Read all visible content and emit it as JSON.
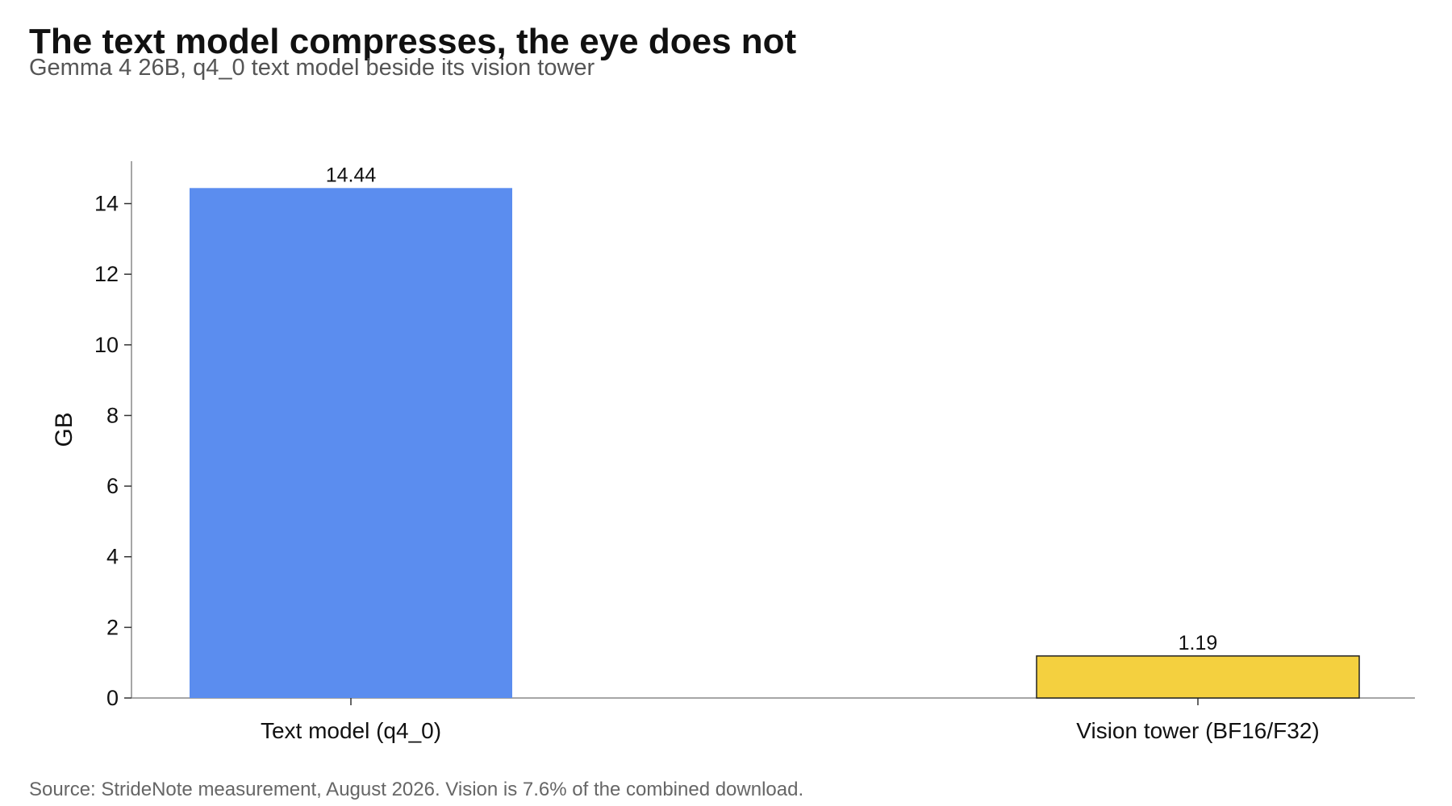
{
  "chart_data": {
    "type": "bar",
    "title": "The text model compresses, the eye does not",
    "subtitle": "Gemma 4 26B, q4_0 text model beside its vision tower",
    "xlabel": "",
    "ylabel": "GB",
    "categories": [
      "Text model (q4_0)",
      "Vision tower (BF16/F32)"
    ],
    "values": [
      14.44,
      1.19
    ],
    "value_labels": [
      "14.44",
      "1.19"
    ],
    "ylim": [
      0,
      15.2
    ],
    "yticks": [
      0,
      2,
      4,
      6,
      8,
      10,
      12,
      14
    ],
    "colors": [
      "#5B8DEF",
      "#F4D03F"
    ],
    "bar_outline": [
      false,
      true
    ],
    "grid": false,
    "source": "Source: StrideNote measurement, August 2026. Vision is 7.6% of the combined download."
  }
}
